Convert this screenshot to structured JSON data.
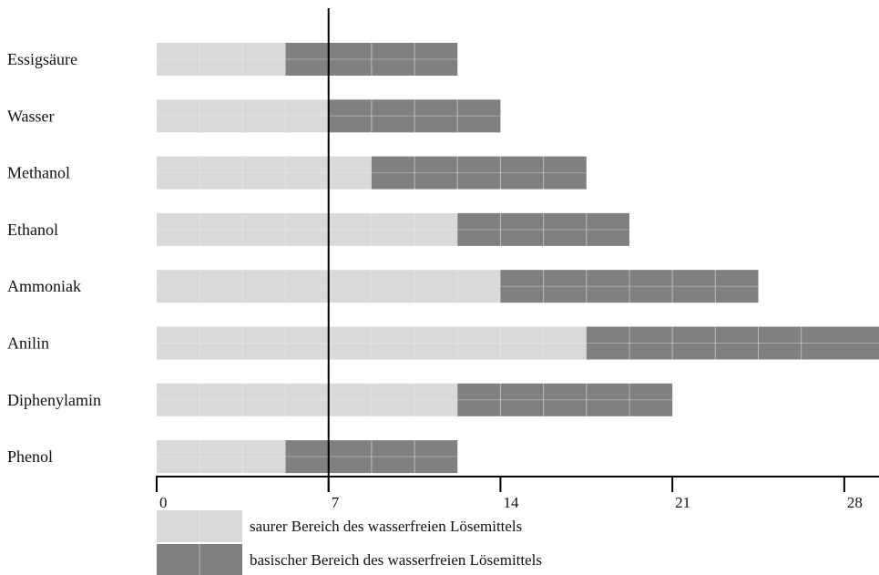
{
  "colors": {
    "acid": "#d9d9d9",
    "base": "#808080",
    "axis": "#000000",
    "segment_line": "#ededed"
  },
  "chart_data": {
    "type": "bar",
    "orientation": "horizontal",
    "stacked": true,
    "title": "",
    "xlabel": "",
    "ylabel": "",
    "xlim": [
      0,
      28
    ],
    "xticks": [
      0,
      7,
      14,
      21,
      28
    ],
    "reference_line": 7,
    "grid": false,
    "legend_position": "bottom-left",
    "categories": [
      "Essigsäure",
      "Wasser",
      "Methanol",
      "Ethanol",
      "Ammoniak",
      "Anilin",
      "Diphenylamin",
      "Phenol"
    ],
    "series": [
      {
        "name": "saurer Bereich des wasserfreien Lösemittels",
        "values": [
          5.25,
          7,
          8.75,
          12.25,
          14,
          17.5,
          12.25,
          5.25
        ]
      },
      {
        "name": "basischer Bereich des wasserfreien Lösemittels",
        "values": [
          7,
          7,
          8.75,
          7,
          10.5,
          12,
          8.75,
          7
        ]
      }
    ]
  }
}
